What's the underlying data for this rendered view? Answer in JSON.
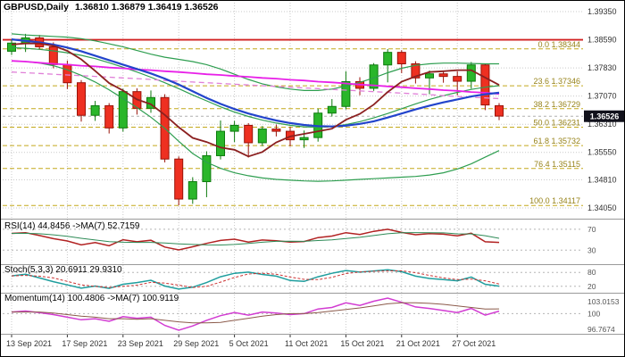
{
  "header": {
    "symbol_period": "GBPUSD,Daily",
    "ohlc": "1.36810 1.36879 1.36419 1.36526"
  },
  "chart_data": {
    "type": "candlestick",
    "symbol": "GBPUSD",
    "timeframe": "Daily",
    "current": {
      "open": "1.36810",
      "high": "1.36879",
      "low": "1.36419",
      "close": "1.36526"
    },
    "price_axis": {
      "labels": [
        "1.39350",
        "1.38590",
        "1.37830",
        "1.37070",
        "1.36310",
        "1.35550",
        "1.34810",
        "1.34050"
      ]
    },
    "time_axis": {
      "ticks": [
        {
          "i": 0,
          "label": "13 Sep 2021"
        },
        {
          "i": 4,
          "label": "17 Sep 2021"
        },
        {
          "i": 8,
          "label": "23 Sep 2021"
        },
        {
          "i": 12,
          "label": "29 Sep 2021"
        },
        {
          "i": 16,
          "label": "5 Oct 2021"
        },
        {
          "i": 20,
          "label": "11 Oct 2021"
        },
        {
          "i": 24,
          "label": "15 Oct 2021"
        },
        {
          "i": 28,
          "label": "21 Oct 2021"
        },
        {
          "i": 32,
          "label": "27 Oct 2021"
        }
      ]
    },
    "candles": [
      {
        "o": 1.3828,
        "h": 1.386,
        "l": 1.3818,
        "c": 1.385
      },
      {
        "o": 1.385,
        "h": 1.3875,
        "l": 1.3826,
        "c": 1.3864
      },
      {
        "o": 1.3864,
        "h": 1.3872,
        "l": 1.3832,
        "c": 1.384
      },
      {
        "o": 1.384,
        "h": 1.3852,
        "l": 1.3782,
        "c": 1.3792
      },
      {
        "o": 1.3792,
        "h": 1.3803,
        "l": 1.3726,
        "c": 1.3743
      },
      {
        "o": 1.3743,
        "h": 1.375,
        "l": 1.3638,
        "c": 1.3655
      },
      {
        "o": 1.3655,
        "h": 1.3694,
        "l": 1.364,
        "c": 1.3681
      },
      {
        "o": 1.3681,
        "h": 1.3688,
        "l": 1.3606,
        "c": 1.3621
      },
      {
        "o": 1.3621,
        "h": 1.3727,
        "l": 1.3611,
        "c": 1.3719
      },
      {
        "o": 1.3719,
        "h": 1.3728,
        "l": 1.3657,
        "c": 1.3674
      },
      {
        "o": 1.3674,
        "h": 1.3722,
        "l": 1.3662,
        "c": 1.3703
      },
      {
        "o": 1.3703,
        "h": 1.3712,
        "l": 1.3528,
        "c": 1.3537
      },
      {
        "o": 1.3537,
        "h": 1.3544,
        "l": 1.3412,
        "c": 1.3429
      },
      {
        "o": 1.3429,
        "h": 1.3488,
        "l": 1.3416,
        "c": 1.3476
      },
      {
        "o": 1.3476,
        "h": 1.3558,
        "l": 1.3434,
        "c": 1.3546
      },
      {
        "o": 1.3546,
        "h": 1.3641,
        "l": 1.3536,
        "c": 1.3612
      },
      {
        "o": 1.3612,
        "h": 1.364,
        "l": 1.3583,
        "c": 1.3628
      },
      {
        "o": 1.3628,
        "h": 1.3634,
        "l": 1.3541,
        "c": 1.3581
      },
      {
        "o": 1.3581,
        "h": 1.3626,
        "l": 1.3572,
        "c": 1.3618
      },
      {
        "o": 1.3618,
        "h": 1.363,
        "l": 1.3598,
        "c": 1.3612
      },
      {
        "o": 1.3612,
        "h": 1.3624,
        "l": 1.3571,
        "c": 1.3589
      },
      {
        "o": 1.3589,
        "h": 1.3614,
        "l": 1.3567,
        "c": 1.3595
      },
      {
        "o": 1.3595,
        "h": 1.3673,
        "l": 1.3584,
        "c": 1.3661
      },
      {
        "o": 1.3661,
        "h": 1.3699,
        "l": 1.3652,
        "c": 1.3679
      },
      {
        "o": 1.3679,
        "h": 1.3774,
        "l": 1.3671,
        "c": 1.3746
      },
      {
        "o": 1.3746,
        "h": 1.3758,
        "l": 1.3709,
        "c": 1.3728
      },
      {
        "o": 1.3728,
        "h": 1.3796,
        "l": 1.3721,
        "c": 1.3791
      },
      {
        "o": 1.3791,
        "h": 1.3834,
        "l": 1.3744,
        "c": 1.3825
      },
      {
        "o": 1.3825,
        "h": 1.3831,
        "l": 1.3769,
        "c": 1.3794
      },
      {
        "o": 1.3794,
        "h": 1.3801,
        "l": 1.3741,
        "c": 1.3756
      },
      {
        "o": 1.3756,
        "h": 1.3776,
        "l": 1.3712,
        "c": 1.3767
      },
      {
        "o": 1.3767,
        "h": 1.3776,
        "l": 1.3743,
        "c": 1.376
      },
      {
        "o": 1.376,
        "h": 1.3774,
        "l": 1.3709,
        "c": 1.3747
      },
      {
        "o": 1.3747,
        "h": 1.3799,
        "l": 1.3727,
        "c": 1.3791
      },
      {
        "o": 1.3791,
        "h": 1.3794,
        "l": 1.3669,
        "c": 1.3683
      },
      {
        "o": 1.3681,
        "h": 1.3688,
        "l": 1.3642,
        "c": 1.3653
      }
    ],
    "overlays": [
      {
        "name": "bollinger-upper",
        "color": "#2e9e50",
        "width": 1.2,
        "dash": "",
        "values": [
          1.3875,
          1.3872,
          1.387,
          1.3868,
          1.3866,
          1.3862,
          1.3856,
          1.3848,
          1.384,
          1.383,
          1.382,
          1.3812,
          1.3806,
          1.38,
          1.3792,
          1.378,
          1.3766,
          1.3752,
          1.374,
          1.3732,
          1.3726,
          1.3722,
          1.3722,
          1.3726,
          1.3734,
          1.3744,
          1.3756,
          1.377,
          1.3782,
          1.379,
          1.3794,
          1.3796,
          1.3796,
          1.3795,
          1.3794,
          1.3794
        ]
      },
      {
        "name": "bollinger-middle",
        "color": "#2e9e50",
        "width": 1.2,
        "dash": "",
        "values": [
          1.3838,
          1.3836,
          1.3833,
          1.3829,
          1.3824,
          1.3817,
          1.3808,
          1.3797,
          1.3785,
          1.3772,
          1.3758,
          1.3743,
          1.3727,
          1.371,
          1.3694,
          1.3678,
          1.3664,
          1.3652,
          1.3642,
          1.3634,
          1.3628,
          1.3624,
          1.3623,
          1.3625,
          1.363,
          1.3638,
          1.3648,
          1.366,
          1.3673,
          1.3686,
          1.3698,
          1.3708,
          1.3717,
          1.3725,
          1.3731,
          1.3735
        ]
      },
      {
        "name": "bollinger-lower",
        "color": "#2e9e50",
        "width": 1.2,
        "dash": "",
        "values": [
          1.3802,
          1.38,
          1.3796,
          1.3789,
          1.3778,
          1.3763,
          1.3745,
          1.3724,
          1.37,
          1.3676,
          1.365,
          1.362,
          1.3585,
          1.3552,
          1.3528,
          1.3512,
          1.35,
          1.3492,
          1.3486,
          1.3482,
          1.348,
          1.3478,
          1.3477,
          1.3478,
          1.348,
          1.3482,
          1.3484,
          1.3486,
          1.3488,
          1.349,
          1.3494,
          1.35,
          1.351,
          1.3524,
          1.3542,
          1.356
        ]
      },
      {
        "name": "ma-magenta",
        "color": "#e820e8",
        "width": 1.8,
        "dash": "",
        "values": [
          1.3802,
          1.38,
          1.3797,
          1.3794,
          1.3792,
          1.3789,
          1.3787,
          1.3784,
          1.3782,
          1.3779,
          1.3777,
          1.3774,
          1.3772,
          1.3769,
          1.3766,
          1.3764,
          1.3761,
          1.3759,
          1.3756,
          1.3754,
          1.3751,
          1.3749,
          1.3746,
          1.3744,
          1.3741,
          1.3738,
          1.3736,
          1.3733,
          1.3731,
          1.3728,
          1.3726,
          1.3723,
          1.3721,
          1.3718,
          1.3716,
          1.3713
        ]
      },
      {
        "name": "ma-pink-dashed",
        "color": "#e080d8",
        "width": 1.3,
        "dash": "6,4",
        "values": [
          1.3772,
          1.377,
          1.3768,
          1.3766,
          1.3764,
          1.3762,
          1.376,
          1.3758,
          1.3756,
          1.3754,
          1.3752,
          1.3749,
          1.3747,
          1.3745,
          1.3743,
          1.3741,
          1.3739,
          1.3737,
          1.3735,
          1.3733,
          1.3731,
          1.3729,
          1.3727,
          1.3725,
          1.3723,
          1.3721,
          1.3719,
          1.3717,
          1.3715,
          1.3713,
          1.3711,
          1.3708,
          1.3706,
          1.3704,
          1.3702,
          1.37
        ]
      },
      {
        "name": "ma-blue-slow",
        "color": "#2244cc",
        "width": 2.2,
        "dash": "",
        "values": [
          1.386,
          1.3856,
          1.3852,
          1.3846,
          1.3838,
          1.3828,
          1.3816,
          1.3804,
          1.3792,
          1.378,
          1.3768,
          1.3754,
          1.3738,
          1.372,
          1.3702,
          1.3686,
          1.3672,
          1.366,
          1.365,
          1.3641,
          1.3634,
          1.3629,
          1.3626,
          1.3625,
          1.3627,
          1.3632,
          1.3639,
          1.3649,
          1.366,
          1.3671,
          1.3681,
          1.369,
          1.3698,
          1.3706,
          1.3712,
          1.3716
        ]
      },
      {
        "name": "ma-maroon-fast",
        "color": "#8b2020",
        "width": 1.8,
        "dash": "",
        "values": [
          1.3846,
          1.3849,
          1.3849,
          1.3843,
          1.3829,
          1.3806,
          1.3775,
          1.3742,
          1.3722,
          1.3698,
          1.3685,
          1.3656,
          1.3623,
          1.3594,
          1.3583,
          1.3568,
          1.3562,
          1.3544,
          1.3556,
          1.3582,
          1.3598,
          1.3605,
          1.3612,
          1.3619,
          1.3643,
          1.3659,
          1.3684,
          1.3718,
          1.3746,
          1.376,
          1.3772,
          1.3774,
          1.3777,
          1.3777,
          1.3757,
          1.3737
        ]
      }
    ],
    "hlines": [
      {
        "name": "resistance-line",
        "price": 1.3859,
        "color": "#d22020",
        "width": 1.8,
        "dash": ""
      },
      {
        "name": "last-close-line",
        "price": 1.36526,
        "color": "#b0b0b0",
        "width": 1,
        "dash": "3,3"
      }
    ],
    "fibonacci": {
      "color": "#c4a91c",
      "text_color": "#97831a",
      "levels": [
        {
          "label": "0.0",
          "price": "1.38344",
          "value": 1.38344
        },
        {
          "label": "23.6",
          "price": "1.37346",
          "value": 1.37346
        },
        {
          "label": "38.2",
          "price": "1.36729",
          "value": 1.36729
        },
        {
          "label": "50.0",
          "price": "1.36231",
          "value": 1.36231
        },
        {
          "label": "61.8",
          "price": "1.35732",
          "value": 1.35732
        },
        {
          "label": "76.4",
          "price": "1.35115",
          "value": 1.35115
        },
        {
          "label": "100.0",
          "price": "1.34117",
          "value": 1.34117
        }
      ]
    },
    "price_tag": {
      "text": "1.36526",
      "value": 1.36526,
      "bg": "#11111b",
      "fg": "#ffffff"
    },
    "panels": [
      {
        "id": "rsi",
        "label": "RSI(14) 44.8456 ->MA(7) 52.7159",
        "range": [
          10,
          80
        ],
        "levels": [
          {
            "value": 70,
            "label": "70"
          },
          {
            "value": 30,
            "label": "30"
          }
        ],
        "scale_labels": [],
        "series": [
          {
            "name": "rsi-line",
            "color": "#b22222",
            "width": 1.5,
            "dash": "",
            "values": [
              62.0,
              63.5,
              58.0,
              52.0,
              47.5,
              40.0,
              44.5,
              38.5,
              50.0,
              46.0,
              49.0,
              36.0,
              30.5,
              36.5,
              43.0,
              48.5,
              51.0,
              45.5,
              49.5,
              48.0,
              45.5,
              46.5,
              54.0,
              57.0,
              63.5,
              60.0,
              66.0,
              70.0,
              64.0,
              59.5,
              61.5,
              60.5,
              57.5,
              62.5,
              46.0,
              44.85
            ]
          },
          {
            "name": "rsi-ma-line",
            "color": "#2e8b57",
            "width": 1,
            "dash": "",
            "values": [
              62.0,
              62.3,
              61.4,
              59.3,
              56.4,
              52.7,
              49.4,
              46.4,
              45.1,
              44.9,
              44.9,
              43.7,
              42.1,
              40.9,
              40.1,
              39.9,
              40.9,
              43.0,
              45.1,
              46.9,
              47.3,
              46.9,
              48.4,
              49.6,
              52.3,
              54.6,
              58.0,
              61.4,
              63.2,
              63.6,
              63.5,
              63.1,
              61.3,
              61.1,
              57.7,
              52.72
            ]
          }
        ]
      },
      {
        "id": "stochastic",
        "label": "Stoch(5,3,3) 20.6911 29.9310",
        "range": [
          0,
          100
        ],
        "levels": [
          {
            "value": 80,
            "label": "80"
          },
          {
            "value": 20,
            "label": "20"
          }
        ],
        "scale_labels": [],
        "series": [
          {
            "name": "stoch-main-line",
            "color": "#1f9e9e",
            "width": 1.5,
            "dash": "",
            "values": [
              65,
              72,
              56,
              40,
              26,
              12,
              21,
              11,
              29,
              36,
              46,
              21,
              8,
              16,
              36,
              61,
              76,
              81,
              71,
              64,
              45,
              41,
              61,
              76,
              88,
              81,
              86,
              91,
              83,
              64,
              54,
              49,
              44,
              60,
              29,
              20.69
            ]
          },
          {
            "name": "stoch-signal-line",
            "color": "#cc3333",
            "width": 1,
            "dash": "3,2",
            "values": [
              65,
              67,
              64,
              56,
              41,
              26,
              20,
              15,
              20,
              25,
              37,
              34,
              25,
              15,
              20,
              38,
              58,
              73,
              76,
              72,
              60,
              50,
              49,
              59,
              75,
              82,
              85,
              86,
              87,
              79,
              67,
              56,
              49,
              51,
              44,
              29.93
            ]
          }
        ]
      },
      {
        "id": "momentum",
        "label": "Momentum(14) 100.4806 ->MA(7) 100.9119",
        "range": [
          96.7674,
          103.0153
        ],
        "levels": [
          {
            "value": 100,
            "label": ""
          }
        ],
        "scale_labels": [
          {
            "value": 103.0153,
            "label": "103.0153"
          },
          {
            "value": 100,
            "label": "100"
          },
          {
            "value": 96.7674,
            "label": "96.7674"
          }
        ],
        "series": [
          {
            "name": "momentum-line",
            "color": "#d23cd2",
            "width": 1.5,
            "dash": "",
            "values": [
              100.3,
              100.5,
              100.2,
              99.8,
              99.3,
              98.8,
              99.0,
              98.5,
              99.4,
              99.1,
              99.3,
              97.7,
              96.77,
              97.6,
              98.7,
              99.6,
              100.2,
              99.7,
              100.3,
              100.1,
              99.8,
              100.0,
              100.9,
              101.2,
              102.1,
              101.6,
              102.4,
              103.02,
              102.2,
              101.3,
              101.0,
              100.6,
              100.2,
              101.0,
              99.7,
              100.48
            ]
          },
          {
            "name": "momentum-ma-line",
            "color": "#8b5a4a",
            "width": 1,
            "dash": "",
            "values": [
              100.3,
              100.3,
              100.3,
              100.1,
              99.8,
              99.5,
              99.3,
              99.0,
              99.0,
              98.9,
              99.0,
              98.7,
              98.4,
              98.2,
              98.2,
              98.3,
              98.7,
              99.1,
              99.5,
              99.8,
              100.0,
              100.0,
              100.2,
              100.5,
              100.8,
              101.1,
              101.5,
              101.9,
              102.1,
              102.1,
              102.0,
              101.8,
              101.5,
              101.2,
              100.9,
              100.91
            ]
          }
        ]
      }
    ],
    "colors": {
      "up": "#2ab62a",
      "up_stroke": "#0d7a0d",
      "down": "#ee3021",
      "down_stroke": "#991208",
      "grid": "#c9c9c9",
      "axis_text": "#333333",
      "panel_level": "#b5b5b5",
      "panel_text": "#555555",
      "divider": "#9a9a9a"
    }
  }
}
